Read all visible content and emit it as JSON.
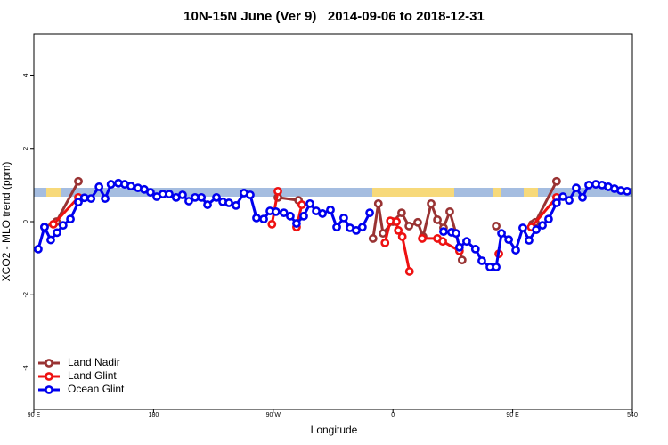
{
  "chart_data": {
    "type": "line",
    "title": "10N-15N June (Ver 9)   2014-09-06 to 2018-12-31",
    "x_label": "Longitude",
    "y_label": "XCO2 - MLO trend (ppm)",
    "xlim": [
      90,
      540
    ],
    "xticks": [
      {
        "value": 90,
        "label": "90 E"
      },
      180,
      {
        "value": 270,
        "label": "90 W"
      },
      {
        "value": 360,
        "label": "0"
      },
      {
        "value": 450,
        "label": "90 E"
      },
      540
    ],
    "ylim": [
      -5.13,
      5.13
    ],
    "yticks": [
      -4,
      -2,
      0,
      2,
      4
    ],
    "legend": "bottom-left",
    "series": [
      {
        "name": "Land Nadir",
        "color": "#993333",
        "x": [
          98,
          107,
          123.5,
          200,
          273.5,
          289,
          320,
          345,
          349,
          352.5,
          360,
          366.5,
          372,
          378.6,
          382.6,
          388.7,
          393.4,
          398,
          402.7,
          407.4,
          412,
          425,
          437.6,
          450,
          464.9,
          467,
          483
        ],
        "values": [
          -0.15,
          0,
          1.1,
          null,
          0.66,
          0.58,
          null,
          -0.46,
          0.49,
          -0.32,
          0,
          0.24,
          -0.12,
          -0.02,
          -0.41,
          0.49,
          0.05,
          -0.17,
          0.27,
          -0.32,
          -1.05,
          null,
          -0.12,
          null,
          -0.07,
          -0.02,
          1.1
        ]
      },
      {
        "name": "Land Glint",
        "color": "#ee1111",
        "x": [
          104.7,
          123.5,
          200,
          269,
          273.5,
          280,
          287.5,
          291.5,
          320,
          354,
          358,
          362.6,
          364,
          367,
          372.4,
          377,
          382,
          393.4,
          397.4,
          410,
          425,
          439.6,
          450,
          464,
          483
        ],
        "values": [
          -0.07,
          0.66,
          null,
          -0.07,
          0.83,
          null,
          -0.15,
          0.46,
          null,
          -0.58,
          0.02,
          0,
          -0.24,
          -0.41,
          -1.36,
          null,
          -0.46,
          -0.46,
          -0.54,
          -0.8,
          null,
          -0.88,
          null,
          -0.15,
          0.66
        ]
      },
      {
        "name": "Ocean Glint",
        "color": "#0000ee",
        "x": [
          93.3,
          98,
          102.7,
          107.4,
          112,
          117.5,
          123.5,
          128,
          133,
          139,
          143.6,
          148,
          153.6,
          158.3,
          163,
          168.3,
          173,
          177.7,
          182.4,
          187,
          191.8,
          197,
          201.8,
          206.5,
          211.2,
          216,
          220.6,
          227.3,
          232,
          236.7,
          242,
          248,
          252.7,
          257.4,
          262.8,
          267.5,
          272,
          278,
          282.8,
          287.5,
          292.9,
          297.6,
          302.3,
          307,
          313,
          317.7,
          323,
          327.7,
          332.4,
          337,
          342.5,
          370,
          398,
          404,
          407.4,
          410,
          415.4,
          422,
          426.8,
          432.9,
          437.6,
          441.6,
          447,
          452.3,
          457.6,
          462.3,
          467.7,
          472.4,
          477,
          483,
          487.8,
          492.5,
          497.8,
          502.5,
          507.2,
          512.5,
          517.2,
          521.9,
          526.6,
          531.3,
          536
        ],
        "values": [
          -0.75,
          -0.15,
          -0.5,
          -0.3,
          -0.1,
          0.07,
          0.53,
          0.65,
          0.63,
          0.95,
          0.63,
          1.02,
          1.05,
          1.02,
          0.97,
          0.92,
          0.88,
          0.8,
          0.68,
          0.75,
          0.75,
          0.66,
          0.73,
          0.56,
          0.66,
          0.66,
          0.46,
          0.66,
          0.54,
          0.51,
          0.44,
          0.78,
          0.73,
          0.1,
          0.07,
          0.29,
          0.27,
          0.24,
          0.15,
          -0.05,
          0.15,
          0.49,
          0.29,
          0.22,
          0.32,
          -0.15,
          0.1,
          -0.17,
          -0.24,
          -0.15,
          0.24,
          null,
          -0.27,
          -0.29,
          -0.32,
          -0.7,
          -0.54,
          -0.75,
          -1.07,
          -1.24,
          -1.24,
          -0.32,
          -0.49,
          -0.78,
          -0.17,
          -0.51,
          -0.22,
          -0.1,
          0.07,
          0.51,
          0.68,
          0.58,
          0.92,
          0.66,
          1.0,
          1.02,
          1.0,
          0.95,
          0.9,
          0.85,
          0.83
        ]
      }
    ]
  }
}
